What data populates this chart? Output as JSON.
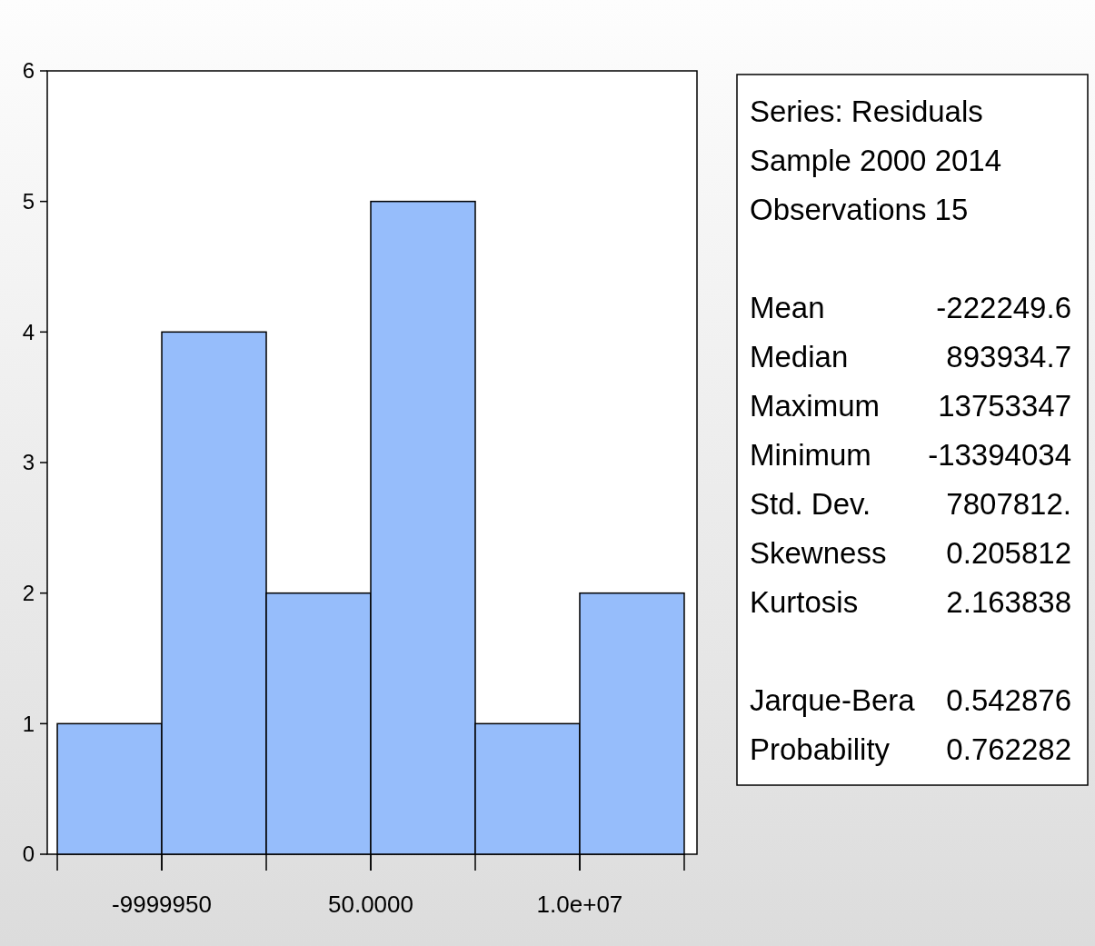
{
  "chart_data": [
    {
      "type": "histogram",
      "bins": [
        -14999950,
        -9999950,
        -4999950,
        50,
        5000050,
        10000050,
        15000050
      ],
      "values": [
        1,
        4,
        2,
        5,
        1,
        2
      ],
      "color": "#96bdfb",
      "xlim": [
        -15480000,
        15610000
      ],
      "xticks": [
        -9999950,
        {
          "value": 50,
          "label": "50.0000"
        },
        {
          "value": 10000050,
          "label": "1.0e+07"
        }
      ],
      "ylim": [
        0,
        6
      ],
      "yticks": [
        0,
        1,
        2,
        3,
        4,
        5,
        6
      ],
      "grid": false
    },
    {
      "type": "other",
      "annotations": [
        "Series: Residuals",
        "Sample 2000 2014",
        "Observations 15",
        "Mean\t-222249.6",
        "Median\t893934.7",
        "Maximum\t13753347",
        "Minimum\t-13394034",
        "Std. Dev.\t7807812.",
        "Skewness\t0.205812",
        "Kurtosis\t2.163838",
        "Jarque-Bera\t0.542876",
        "Probability\t0.762282"
      ]
    }
  ]
}
